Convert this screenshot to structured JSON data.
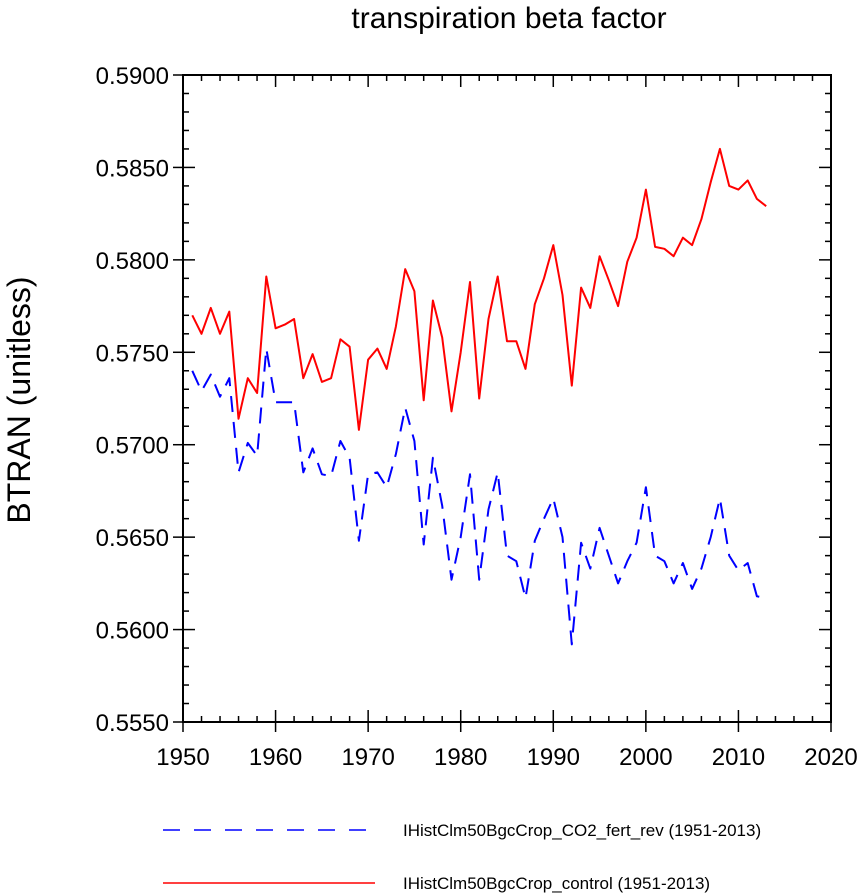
{
  "chart_data": {
    "type": "line",
    "title": "transpiration beta factor",
    "xlabel": "",
    "ylabel": "BTRAN  (unitless)",
    "xlim": [
      1950,
      2020
    ],
    "ylim": [
      0.555,
      0.59
    ],
    "x_major_ticks": [
      1950,
      1960,
      1970,
      1980,
      1990,
      2000,
      2010,
      2020
    ],
    "x_tick_labels": [
      "1950",
      "1960",
      "1970",
      "1980",
      "1990",
      "2000",
      "2010",
      "2020"
    ],
    "y_major_ticks": [
      0.555,
      0.56,
      0.565,
      0.57,
      0.575,
      0.58,
      0.585,
      0.59
    ],
    "y_tick_labels": [
      "0.5550",
      "0.5600",
      "0.5650",
      "0.5700",
      "0.5750",
      "0.5800",
      "0.5850",
      "0.5900"
    ],
    "grid": false,
    "legend_position": "bottom",
    "x": [
      1951,
      1952,
      1953,
      1954,
      1955,
      1956,
      1957,
      1958,
      1959,
      1960,
      1961,
      1962,
      1963,
      1964,
      1965,
      1966,
      1967,
      1968,
      1969,
      1970,
      1971,
      1972,
      1973,
      1974,
      1975,
      1976,
      1977,
      1978,
      1979,
      1980,
      1981,
      1982,
      1983,
      1984,
      1985,
      1986,
      1987,
      1988,
      1989,
      1990,
      1991,
      1992,
      1993,
      1994,
      1995,
      1996,
      1997,
      1998,
      1999,
      2000,
      2001,
      2002,
      2003,
      2004,
      2005,
      2006,
      2007,
      2008,
      2009,
      2010,
      2011,
      2012,
      2013
    ],
    "series": [
      {
        "name": "IHistClm50BgcCrop_CO2_fert_rev (1951-2013)",
        "color": "#0000ff",
        "dash": "dashed",
        "values": [
          0.574,
          0.5729,
          0.5738,
          0.5726,
          0.5736,
          0.5685,
          0.5701,
          0.5694,
          0.5752,
          0.5723,
          0.5723,
          0.5723,
          0.5685,
          0.5698,
          0.5684,
          0.5683,
          0.5702,
          0.5693,
          0.5648,
          0.5684,
          0.5685,
          0.5677,
          0.5695,
          0.572,
          0.5702,
          0.5646,
          0.5693,
          0.5667,
          0.5627,
          0.565,
          0.5684,
          0.5627,
          0.5665,
          0.5685,
          0.564,
          0.5637,
          0.5617,
          0.5648,
          0.566,
          0.5671,
          0.565,
          0.5592,
          0.5647,
          0.5633,
          0.5655,
          0.564,
          0.5625,
          0.5637,
          0.5647,
          0.5677,
          0.564,
          0.5637,
          0.5625,
          0.5636,
          0.5622,
          0.5633,
          0.565,
          0.5671,
          0.564,
          0.5632,
          0.5636,
          0.5618,
          0.5617
        ]
      },
      {
        "name": "IHistClm50BgcCrop_control (1951-2013)",
        "color": "#ff0000",
        "dash": "solid",
        "values": [
          0.577,
          0.576,
          0.5774,
          0.576,
          0.5772,
          0.5714,
          0.5736,
          0.5728,
          0.5791,
          0.5763,
          0.5765,
          0.5768,
          0.5736,
          0.5749,
          0.5734,
          0.5736,
          0.5757,
          0.5753,
          0.5708,
          0.5746,
          0.5752,
          0.5741,
          0.5764,
          0.5795,
          0.5783,
          0.5724,
          0.5778,
          0.5758,
          0.5718,
          0.575,
          0.5788,
          0.5725,
          0.5768,
          0.5791,
          0.5756,
          0.5756,
          0.5741,
          0.5776,
          0.579,
          0.5808,
          0.5781,
          0.5732,
          0.5785,
          0.5774,
          0.5802,
          0.5789,
          0.5775,
          0.5799,
          0.5812,
          0.5838,
          0.5807,
          0.5806,
          0.5802,
          0.5812,
          0.5808,
          0.5822,
          0.5842,
          0.586,
          0.584,
          0.5838,
          0.5843,
          0.5833,
          0.5829
        ]
      }
    ]
  }
}
